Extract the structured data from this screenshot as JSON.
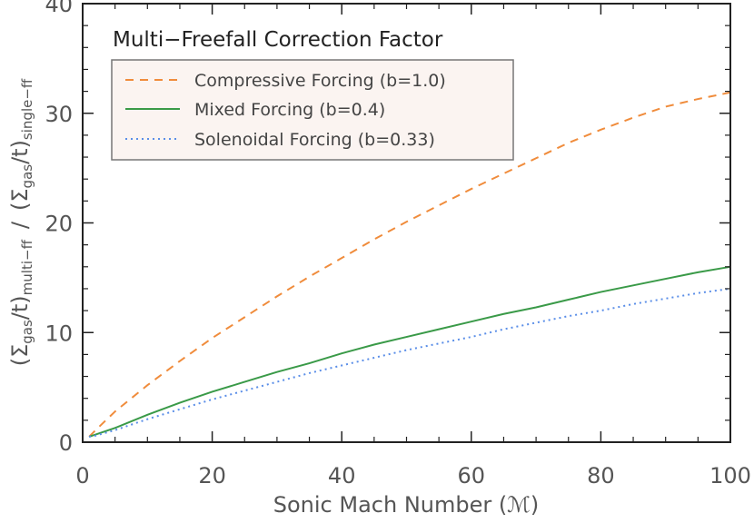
{
  "chart_data": {
    "type": "line",
    "title": "Multi−Freefall Correction Factor",
    "xlabel": "Sonic Mach Number (ℳ)",
    "ylabel": {
      "sigma1": "(Σ",
      "sub_gas1": "gas",
      "mid1": "/t)",
      "sub_multi": "multi−ff",
      "sep": "/",
      "sigma2": "(Σ",
      "sub_gas2": "gas",
      "mid2": "/t)",
      "sub_single": "single−ff"
    },
    "xlim": [
      0,
      100
    ],
    "ylim": [
      0,
      40
    ],
    "xticks": [
      0,
      20,
      40,
      60,
      80,
      100
    ],
    "yticks": [
      0,
      10,
      20,
      30,
      40
    ],
    "grid": false,
    "legend_position": "top-left",
    "series": [
      {
        "name": "Compressive Forcing (b=1.0)",
        "color": "#f08c3c",
        "dash": "dashed",
        "x": [
          1,
          2,
          5,
          10,
          15,
          20,
          25,
          30,
          35,
          40,
          45,
          50,
          55,
          60,
          65,
          70,
          75,
          80,
          85,
          90,
          95,
          100
        ],
        "y": [
          0.5,
          1.1,
          2.8,
          5.2,
          7.4,
          9.5,
          11.4,
          13.3,
          15.1,
          16.8,
          18.5,
          20.1,
          21.6,
          23.1,
          24.5,
          25.9,
          27.3,
          28.5,
          29.6,
          30.6,
          31.3,
          31.9
        ]
      },
      {
        "name": "Mixed Forcing (b=0.4)",
        "color": "#3a9a48",
        "dash": "solid",
        "x": [
          1,
          2,
          5,
          10,
          15,
          20,
          25,
          30,
          35,
          40,
          45,
          50,
          55,
          60,
          65,
          70,
          75,
          80,
          85,
          90,
          95,
          100
        ],
        "y": [
          0.5,
          0.7,
          1.3,
          2.5,
          3.6,
          4.6,
          5.5,
          6.4,
          7.2,
          8.1,
          8.9,
          9.6,
          10.3,
          11.0,
          11.7,
          12.3,
          13.0,
          13.7,
          14.3,
          14.9,
          15.5,
          16.0
        ]
      },
      {
        "name": "Solenoidal Forcing (b=0.33)",
        "color": "#5a8ee8",
        "dash": "dotted",
        "x": [
          1,
          2,
          5,
          10,
          15,
          20,
          25,
          30,
          35,
          40,
          45,
          50,
          55,
          60,
          65,
          70,
          75,
          80,
          85,
          90,
          95,
          100
        ],
        "y": [
          0.5,
          0.6,
          1.1,
          2.1,
          3.0,
          3.9,
          4.7,
          5.5,
          6.3,
          7.0,
          7.7,
          8.4,
          9.0,
          9.6,
          10.3,
          10.9,
          11.5,
          12.0,
          12.6,
          13.1,
          13.6,
          14.0
        ]
      }
    ]
  }
}
